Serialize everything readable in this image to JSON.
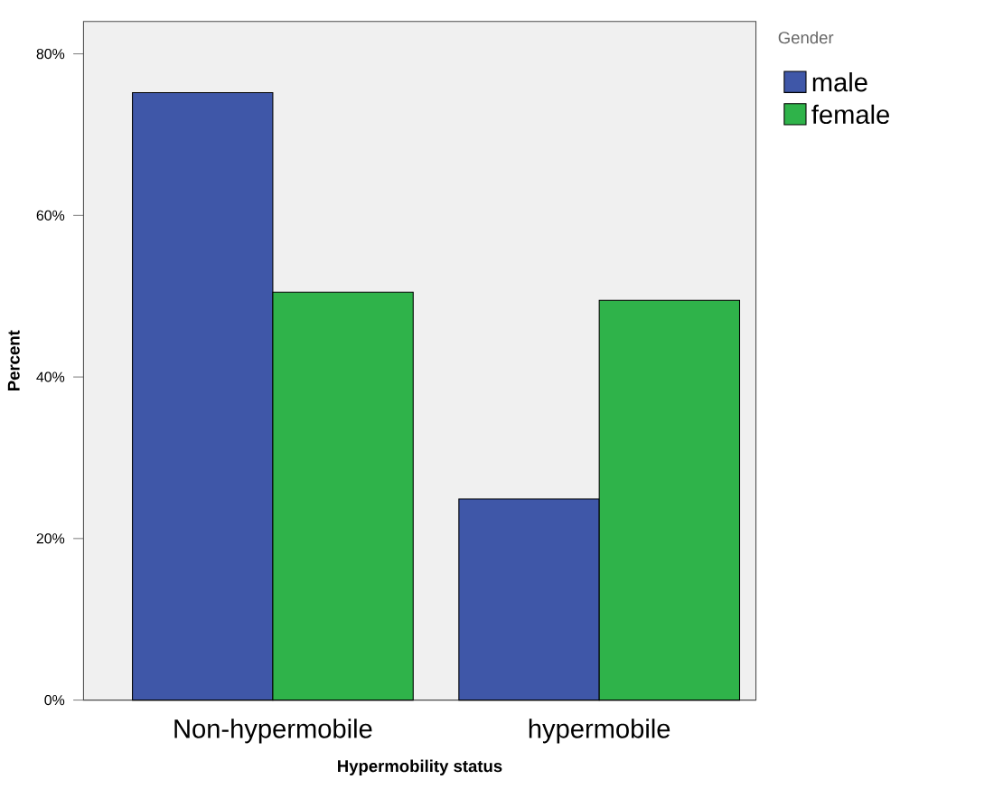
{
  "chart_data": {
    "type": "bar",
    "xlabel": "Hypermobility status",
    "ylabel": "Percent",
    "legend_title": "Gender",
    "legend": "right",
    "categories": [
      "Non-hypermobile",
      "hypermobile"
    ],
    "series": [
      {
        "name": "male",
        "color": "#3f57a8",
        "values": [
          75.2,
          24.9
        ]
      },
      {
        "name": "female",
        "color": "#2fb34a",
        "values": [
          50.5,
          49.5
        ]
      }
    ],
    "ylim": [
      0,
      84
    ],
    "yticks": [
      {
        "value": 0,
        "label": "0%"
      },
      {
        "value": 20,
        "label": "20%"
      },
      {
        "value": 40,
        "label": "40%"
      },
      {
        "value": 60,
        "label": "60%"
      },
      {
        "value": 80,
        "label": "80%"
      }
    ]
  }
}
